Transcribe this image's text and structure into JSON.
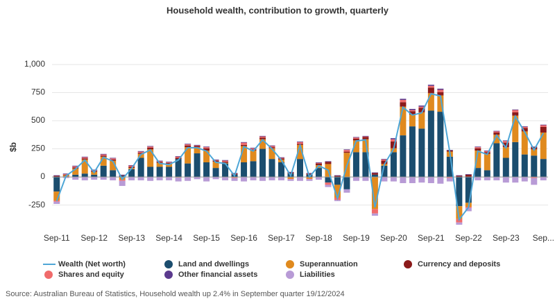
{
  "chart_data": {
    "type": "bar",
    "title": "Household wealth, contribution to growth, quarterly",
    "y_label": "$b",
    "source": "Source: Australian Bureau of Statistics, Household wealth up 2.4% in September quarter 19/12/2024",
    "categories": [
      "Sep-11",
      null,
      null,
      null,
      "Sep-12",
      null,
      null,
      null,
      "Sep-13",
      null,
      null,
      null,
      "Sep-14",
      null,
      null,
      null,
      "Sep-15",
      null,
      null,
      null,
      "Sep-16",
      null,
      null,
      null,
      "Sep-17",
      null,
      null,
      null,
      "Sep-18",
      null,
      null,
      null,
      "Sep-19",
      null,
      null,
      null,
      "Sep-20",
      null,
      null,
      null,
      "Sep-21",
      null,
      null,
      null,
      "Sep-22",
      null,
      null,
      null,
      "Sep-23",
      null,
      null,
      null,
      "Sep..."
    ],
    "ylim": [
      -450,
      1000
    ],
    "yticks": [
      -250,
      0,
      250,
      500,
      750,
      {
        "value": 1000,
        "label": "1,000"
      }
    ],
    "grid": true,
    "series": [
      {
        "name": "Wealth (Net worth)",
        "type": "line",
        "color": "#4ea6d6",
        "values": [
          -215,
          10,
          70,
          150,
          40,
          175,
          140,
          -20,
          75,
          200,
          240,
          120,
          110,
          150,
          260,
          260,
          230,
          130,
          120,
          10,
          270,
          230,
          330,
          250,
          150,
          10,
          280,
          0,
          100,
          60,
          -190,
          100,
          320,
          330,
          -270,
          110,
          250,
          620,
          550,
          570,
          740,
          720,
          220,
          -380,
          -270,
          230,
          200,
          370,
          260,
          540,
          400,
          240,
          390
        ]
      },
      {
        "name": "Land and dwellings",
        "type": "bar",
        "color": "#1b4d6e",
        "values": [
          -130,
          5,
          20,
          30,
          20,
          100,
          60,
          10,
          70,
          170,
          90,
          90,
          90,
          160,
          120,
          210,
          130,
          80,
          120,
          20,
          130,
          140,
          250,
          160,
          130,
          30,
          160,
          20,
          80,
          -50,
          -70,
          -110,
          220,
          220,
          20,
          100,
          220,
          370,
          450,
          430,
          590,
          580,
          180,
          -260,
          -230,
          80,
          60,
          300,
          170,
          310,
          200,
          190,
          160
        ]
      },
      {
        "name": "Superannuation",
        "type": "bar",
        "color": "#e08a1e",
        "values": [
          -80,
          10,
          55,
          125,
          25,
          80,
          85,
          -25,
          10,
          35,
          155,
          35,
          25,
          -5,
          145,
          55,
          105,
          55,
          5,
          -5,
          145,
          95,
          85,
          95,
          25,
          -15,
          125,
          -15,
          25,
          115,
          -115,
          215,
          105,
          115,
          -285,
          15,
          35,
          255,
          105,
          145,
          155,
          145,
          45,
          -115,
          -35,
          155,
          145,
          75,
          95,
          235,
          205,
          55,
          235
        ]
      },
      {
        "name": "Currency and deposits",
        "type": "bar",
        "color": "#8b1a1a",
        "values": [
          10,
          5,
          10,
          10,
          10,
          10,
          10,
          5,
          10,
          10,
          15,
          10,
          10,
          10,
          15,
          10,
          20,
          10,
          10,
          10,
          10,
          10,
          15,
          10,
          10,
          10,
          10,
          10,
          15,
          20,
          10,
          10,
          15,
          20,
          15,
          30,
          60,
          40,
          30,
          40,
          50,
          30,
          10,
          10,
          20,
          20,
          15,
          20,
          40,
          30,
          30,
          20,
          50
        ]
      },
      {
        "name": "Shares and equity",
        "type": "bar",
        "color": "#f06b6b",
        "values": [
          -10,
          5,
          10,
          10,
          5,
          10,
          10,
          -10,
          10,
          10,
          10,
          5,
          5,
          10,
          10,
          5,
          10,
          5,
          10,
          -5,
          20,
          10,
          10,
          10,
          5,
          -5,
          15,
          -5,
          5,
          -20,
          -20,
          15,
          10,
          5,
          -40,
          10,
          20,
          20,
          10,
          10,
          15,
          20,
          -10,
          -30,
          -10,
          10,
          10,
          10,
          15,
          20,
          10,
          -10,
          15
        ]
      },
      {
        "name": "Other financial assets",
        "type": "bar",
        "color": "#5b3a8e",
        "values": [
          5,
          5,
          5,
          5,
          5,
          5,
          5,
          5,
          5,
          5,
          5,
          5,
          5,
          5,
          5,
          5,
          5,
          5,
          5,
          5,
          5,
          5,
          5,
          5,
          5,
          5,
          5,
          5,
          5,
          5,
          5,
          5,
          5,
          5,
          5,
          5,
          10,
          10,
          10,
          10,
          10,
          10,
          5,
          5,
          5,
          5,
          5,
          5,
          5,
          5,
          5,
          5,
          5
        ]
      },
      {
        "name": "Liabilities",
        "type": "bar",
        "color": "#b89bd6",
        "values": [
          -20,
          -10,
          -25,
          -30,
          -25,
          -25,
          -30,
          -45,
          -30,
          -30,
          -35,
          -30,
          -30,
          -35,
          -35,
          -20,
          -40,
          -20,
          -30,
          -25,
          -40,
          -30,
          -35,
          -30,
          -30,
          -15,
          -35,
          -15,
          -25,
          -20,
          -10,
          -30,
          -35,
          -35,
          -20,
          -40,
          -40,
          -55,
          -55,
          -50,
          -55,
          -60,
          -30,
          -20,
          -30,
          -30,
          -30,
          -30,
          -50,
          -50,
          -40,
          -60,
          -30
        ]
      }
    ],
    "legend": "bottom"
  }
}
